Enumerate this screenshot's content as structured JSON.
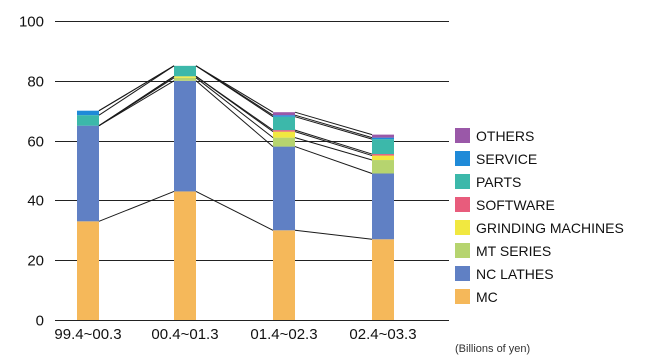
{
  "chart_data": {
    "type": "bar",
    "stacked": true,
    "categories": [
      "99.4~00.3",
      "00.4~01.3",
      "01.4~02.3",
      "02.4~03.3"
    ],
    "series": [
      {
        "name": "MC",
        "color": "#f5b85a",
        "values": [
          33,
          43,
          30,
          27
        ]
      },
      {
        "name": "NC LATHES",
        "color": "#6080c4",
        "values": [
          32,
          37,
          28,
          22
        ]
      },
      {
        "name": "MT SERIES",
        "color": "#b6d46f",
        "values": [
          0,
          1,
          3,
          4.5
        ]
      },
      {
        "name": "GRINDING MACHINES",
        "color": "#f1e840",
        "values": [
          0,
          0.5,
          2,
          1.5
        ]
      },
      {
        "name": "SOFTWARE",
        "color": "#e85c7c",
        "values": [
          0,
          0,
          0.5,
          0.5
        ]
      },
      {
        "name": "PARTS",
        "color": "#3cb8aa",
        "values": [
          3.5,
          3.5,
          4.5,
          5
        ]
      },
      {
        "name": "SERVICE",
        "color": "#1f8ad8",
        "values": [
          1.5,
          0,
          0.5,
          0.5
        ]
      },
      {
        "name": "OTHERS",
        "color": "#9a58a8",
        "values": [
          0,
          0,
          1,
          1
        ]
      }
    ],
    "ylim": [
      0,
      100
    ],
    "yticks": [
      0,
      20,
      40,
      60,
      80,
      100
    ],
    "grid": true,
    "connector_lines": true,
    "legend_position": "right",
    "legend_order": [
      "OTHERS",
      "SERVICE",
      "PARTS",
      "SOFTWARE",
      "GRINDING MACHINES",
      "MT SERIES",
      "NC LATHES",
      "MC"
    ]
  },
  "unit_note": "(Billions of yen)"
}
